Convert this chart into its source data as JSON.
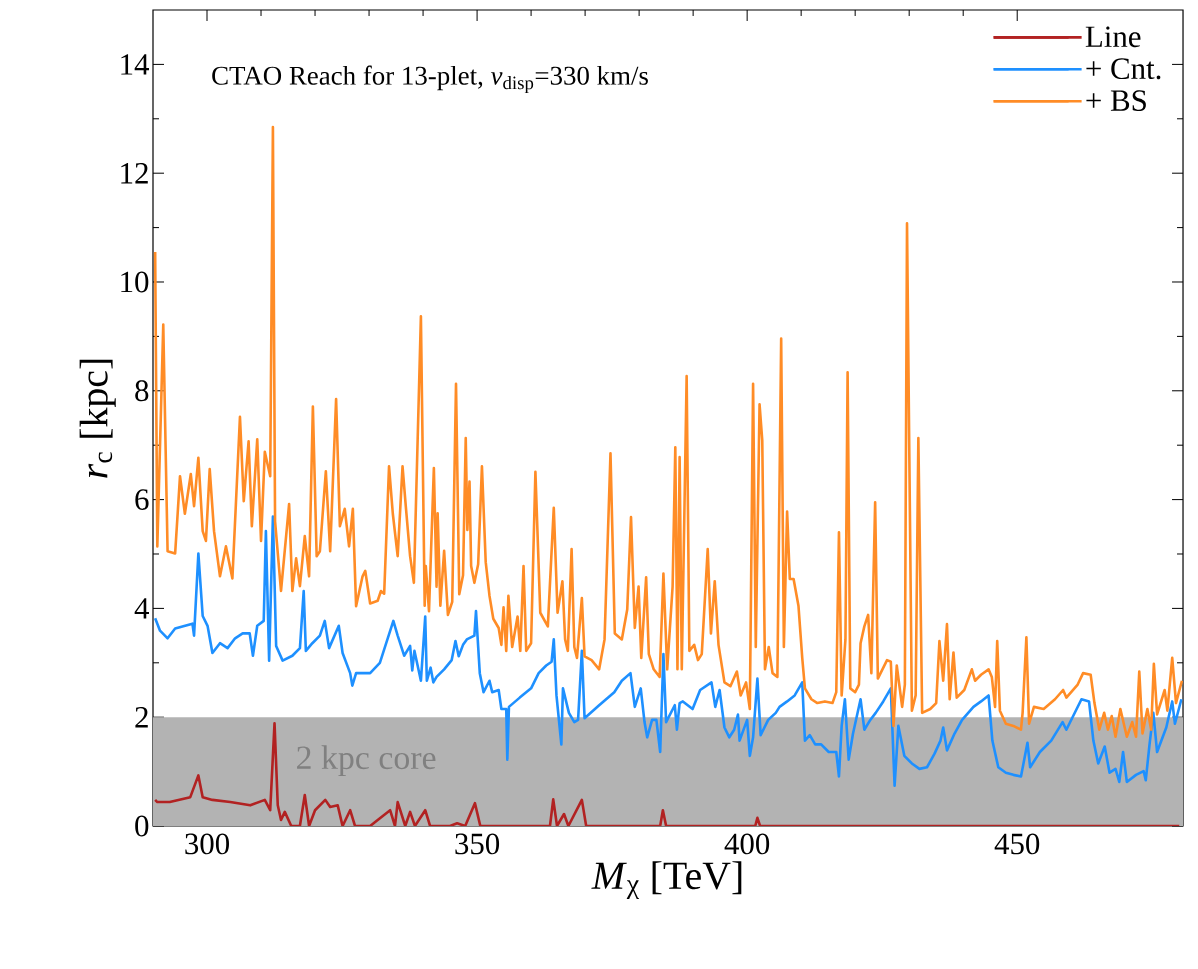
{
  "chart_data": {
    "type": "line",
    "title": "CTAO Reach for 13-plet, *v*$_{disp}$=330 km/s",
    "xlabel": "*M*$_{χ}$ [TeV]",
    "ylabel": "*r*$_{c}$ [kpc]",
    "xlim": [
      290,
      480.7
    ],
    "ylim": [
      0,
      15
    ],
    "xticks": [
      300,
      350,
      400,
      450
    ],
    "yticks": [
      0,
      2,
      4,
      6,
      8,
      10,
      12,
      14
    ],
    "legend": "top right",
    "bands": [
      {
        "axis": "y",
        "from": 0,
        "to": 2,
        "label": "2 kpc core",
        "color": "#b3b3b3"
      }
    ],
    "series": [
      {
        "name": "Line",
        "color": "#b22222",
        "x": [
          290.4,
          290.8,
          293.1,
          296.9,
          298.4,
          299.2,
          301.0,
          304.3,
          308.0,
          310.7,
          311.7,
          312.5,
          313.1,
          313.7,
          314.4,
          315.6,
          317.2,
          318.1,
          318.9,
          320.0,
          321.9,
          322.8,
          324.2,
          325.1,
          326.5,
          327.4,
          330.2,
          331.6,
          333.9,
          334.8,
          335.3,
          336.7,
          337.6,
          338.5,
          340.4,
          341.3,
          345.0,
          346.3,
          347.8,
          349.6,
          350.6,
          363.5,
          364.1,
          364.8,
          366.1,
          366.9,
          369.4,
          370.2,
          383.9,
          384.4,
          385.0,
          401.5,
          401.9,
          402.4,
          480.0
        ],
        "values": [
          0.48,
          0.44,
          0.44,
          0.53,
          0.93,
          0.53,
          0.48,
          0.44,
          0.38,
          0.48,
          0.29,
          1.89,
          0.38,
          0.11,
          0.26,
          0,
          0,
          0.57,
          0,
          0.29,
          0.48,
          0.35,
          0.38,
          0,
          0.29,
          0,
          0,
          0.11,
          0.29,
          0,
          0.44,
          0,
          0.26,
          0,
          0.29,
          0,
          0,
          0.05,
          0,
          0.42,
          0,
          0,
          0.49,
          0,
          0.22,
          0,
          0.48,
          0,
          0,
          0.29,
          0,
          0,
          0.15,
          0,
          0
        ]
      },
      {
        "name": "+ Cnt.",
        "color": "#1e90ff",
        "x": [
          290.4,
          291.3,
          292.7,
          294.1,
          297.3,
          297.6,
          298.4,
          299.2,
          300.1,
          301.0,
          302.4,
          303.8,
          305.2,
          306.6,
          307.9,
          308.5,
          309.3,
          310.5,
          310.9,
          311.5,
          312.2,
          312.8,
          314.0,
          315.8,
          317.2,
          317.9,
          318.3,
          319.5,
          320.9,
          321.8,
          322.6,
          324.4,
          325.1,
          326.5,
          326.9,
          327.6,
          330.2,
          332.0,
          334.5,
          335.3,
          336.5,
          337.6,
          338.0,
          338.4,
          339.6,
          340.4,
          340.7,
          341.4,
          341.9,
          342.5,
          343.9,
          345.3,
          346.0,
          346.6,
          347.4,
          348.1,
          349.5,
          349.8,
          350.5,
          351.2,
          352.3,
          352.8,
          354.0,
          354.5,
          355.4,
          355.6,
          355.9,
          357.9,
          360.0,
          361.4,
          362.8,
          363.8,
          364.2,
          364.7,
          365.6,
          365.9,
          367.0,
          368.0,
          368.7,
          369.4,
          369.9,
          372.6,
          375.4,
          376.8,
          378.4,
          379.2,
          380.3,
          381.0,
          381.5,
          382.4,
          383.2,
          383.9,
          384.5,
          385.0,
          386.6,
          387.0,
          387.5,
          388.1,
          389.9,
          391.3,
          393.4,
          394.1,
          394.9,
          395.8,
          396.7,
          397.6,
          398.3,
          398.6,
          400.0,
          400.5,
          401.1,
          401.9,
          402.5,
          403.9,
          405.3,
          406.0,
          407.4,
          408.8,
          410.2,
          410.7,
          411.6,
          412.6,
          413.7,
          415.1,
          416.5,
          417.0,
          417.5,
          418.1,
          418.8,
          419.6,
          421.0,
          421.7,
          422.8,
          423.8,
          425.2,
          426.6,
          427.3,
          428.0,
          429.1,
          430.5,
          431.9,
          433.3,
          434.7,
          435.8,
          436.3,
          437.0,
          438.4,
          439.8,
          441.9,
          443.3,
          444.7,
          445.4,
          446.5,
          447.9,
          449.3,
          450.7,
          451.9,
          452.4,
          454.2,
          456.3,
          458.4,
          459.1,
          461.9,
          463.3,
          464.1,
          465.0,
          466.2,
          467.1,
          468.2,
          468.9,
          469.6,
          470.3,
          472.0,
          473.4,
          473.8,
          474.5,
          475.2,
          475.9,
          477.6,
          478.7,
          479.2,
          480.4
        ],
        "values": [
          3.82,
          3.59,
          3.45,
          3.63,
          3.72,
          3.5,
          5.01,
          3.86,
          3.68,
          3.18,
          3.36,
          3.27,
          3.45,
          3.54,
          3.54,
          3.13,
          3.68,
          3.77,
          5.42,
          3.04,
          5.69,
          3.31,
          3.04,
          3.13,
          3.27,
          4.32,
          3.22,
          3.36,
          3.5,
          3.77,
          3.27,
          3.68,
          3.18,
          2.81,
          2.58,
          2.81,
          2.81,
          3.0,
          3.77,
          3.5,
          3.13,
          3.31,
          2.86,
          3.22,
          2.67,
          3.85,
          2.67,
          2.91,
          2.64,
          2.74,
          2.88,
          3.05,
          3.4,
          3.12,
          3.33,
          3.43,
          3.5,
          3.95,
          2.81,
          2.46,
          2.67,
          2.46,
          2.5,
          2.15,
          2.15,
          1.22,
          2.19,
          2.36,
          2.53,
          2.81,
          2.95,
          3.02,
          3.43,
          2.4,
          1.5,
          2.53,
          2.08,
          1.91,
          1.95,
          3.22,
          1.98,
          2.22,
          2.46,
          2.67,
          2.81,
          2.19,
          2.53,
          1.91,
          1.63,
          1.95,
          1.95,
          1.36,
          3.16,
          1.91,
          2.22,
          1.77,
          2.26,
          2.29,
          2.15,
          2.5,
          2.64,
          2.19,
          2.5,
          1.81,
          1.63,
          1.77,
          2.05,
          1.57,
          1.95,
          1.29,
          1.63,
          2.71,
          1.67,
          1.95,
          2.08,
          2.19,
          2.29,
          2.4,
          2.64,
          1.57,
          1.67,
          1.5,
          1.5,
          1.36,
          1.36,
          0.91,
          1.84,
          2.33,
          1.22,
          1.7,
          2.33,
          1.77,
          1.95,
          2.08,
          2.29,
          2.53,
          0.74,
          1.84,
          1.29,
          1.15,
          1.05,
          1.08,
          1.33,
          1.57,
          1.81,
          1.39,
          1.7,
          1.95,
          2.19,
          2.29,
          2.4,
          1.57,
          1.08,
          0.98,
          0.94,
          0.91,
          1.53,
          1.08,
          1.36,
          1.57,
          1.91,
          1.77,
          2.33,
          2.29,
          1.57,
          1.15,
          1.46,
          0.98,
          1.05,
          0.81,
          1.36,
          0.81,
          0.94,
          1.01,
          0.84,
          1.5,
          2.08,
          1.36,
          1.81,
          2.29,
          1.88,
          2.33
        ]
      },
      {
        "name": "+ BS",
        "color": "#ff8c26",
        "x": [
          290.4,
          290.8,
          291.9,
          292.7,
          294.1,
          295.0,
          295.9,
          297.0,
          297.6,
          298.4,
          299.2,
          299.8,
          300.5,
          301.3,
          302.4,
          303.5,
          304.7,
          306.1,
          306.8,
          307.7,
          308.3,
          309.3,
          310.0,
          310.7,
          311.7,
          312.2,
          312.6,
          313.7,
          315.2,
          315.8,
          316.5,
          317.2,
          318.1,
          318.9,
          319.6,
          320.3,
          320.9,
          322.0,
          322.8,
          323.9,
          324.6,
          325.5,
          326.3,
          327.0,
          327.6,
          328.8,
          329.3,
          330.2,
          331.6,
          332.2,
          332.8,
          333.7,
          334.4,
          335.3,
          336.2,
          336.8,
          337.6,
          338.3,
          339.6,
          340.3,
          340.5,
          341.1,
          342.0,
          342.5,
          342.7,
          343.2,
          343.9,
          344.6,
          345.4,
          346.1,
          346.7,
          347.4,
          347.9,
          348.2,
          348.6,
          348.9,
          349.5,
          350.2,
          350.9,
          351.6,
          352.3,
          353.0,
          354.0,
          354.5,
          354.9,
          355.4,
          355.8,
          356.5,
          357.5,
          358.0,
          358.6,
          359.1,
          360.0,
          360.8,
          361.7,
          363.1,
          364.2,
          364.9,
          365.8,
          366.3,
          366.8,
          367.5,
          368.0,
          368.5,
          369.4,
          369.9,
          371.2,
          372.6,
          373.6,
          374.7,
          375.5,
          376.8,
          377.8,
          378.5,
          379.2,
          379.9,
          380.4,
          381.3,
          381.8,
          382.7,
          383.8,
          384.5,
          385.2,
          386.2,
          386.7,
          387.1,
          387.5,
          387.9,
          388.8,
          389.3,
          390.2,
          390.9,
          391.6,
          392.7,
          393.3,
          394.0,
          394.7,
          395.8,
          396.9,
          398.1,
          398.8,
          399.8,
          400.5,
          401.1,
          401.6,
          402.3,
          402.8,
          403.3,
          404.0,
          404.7,
          405.6,
          406.3,
          406.8,
          407.4,
          407.9,
          408.6,
          409.5,
          410.2,
          410.7,
          411.9,
          413.0,
          414.4,
          415.8,
          416.5,
          417.0,
          417.5,
          418.2,
          418.6,
          419.1,
          420.0,
          420.7,
          421.0,
          421.7,
          422.4,
          423.0,
          423.7,
          424.2,
          425.9,
          426.6,
          427.1,
          427.7,
          428.7,
          429.2,
          429.6,
          430.5,
          431.2,
          431.7,
          432.4,
          433.9,
          435.0,
          435.6,
          436.3,
          437.0,
          437.5,
          438.2,
          438.8,
          440.2,
          441.6,
          442.2,
          443.3,
          444.7,
          445.3,
          445.9,
          446.3,
          446.8,
          447.9,
          449.3,
          450.7,
          451.0,
          451.7,
          452.2,
          453.1,
          454.9,
          457.0,
          458.5,
          459.1,
          461.2,
          462.2,
          463.6,
          464.3,
          465.2,
          466.1,
          466.8,
          467.5,
          468.2,
          469.1,
          470.3,
          471.3,
          472.0,
          472.6,
          473.2,
          474.1,
          474.8,
          475.3,
          475.9,
          477.3,
          477.8,
          478.7,
          479.4,
          480.5
        ],
        "values": [
          10.55,
          5.14,
          9.22,
          5.05,
          5.01,
          6.43,
          5.74,
          6.47,
          5.88,
          6.77,
          5.42,
          5.24,
          6.56,
          5.42,
          4.59,
          5.14,
          4.55,
          7.52,
          5.97,
          7.07,
          5.51,
          7.11,
          5.24,
          6.88,
          6.43,
          12.85,
          5.6,
          4.32,
          5.92,
          4.32,
          4.92,
          4.41,
          5.33,
          4.59,
          7.71,
          4.96,
          5.05,
          6.52,
          5.05,
          7.85,
          5.51,
          5.83,
          5.14,
          5.83,
          4.04,
          4.59,
          4.69,
          4.09,
          4.14,
          4.32,
          4.27,
          6.61,
          5.74,
          4.96,
          6.61,
          5.88,
          4.96,
          4.47,
          9.37,
          4.05,
          4.78,
          3.95,
          6.58,
          4.4,
          5.75,
          4.05,
          5.06,
          3.88,
          4.12,
          8.13,
          4.26,
          4.61,
          7.13,
          5.44,
          6.33,
          4.78,
          4.47,
          4.81,
          6.61,
          4.85,
          4.23,
          3.81,
          3.64,
          3.33,
          4.02,
          3.22,
          4.23,
          3.29,
          3.85,
          3.22,
          4.78,
          3.22,
          3.36,
          6.51,
          3.92,
          3.67,
          5.85,
          3.92,
          4.5,
          3.43,
          3.22,
          5.09,
          3.29,
          3.09,
          4.19,
          3.12,
          3.05,
          2.88,
          3.43,
          6.85,
          3.54,
          3.43,
          3.98,
          5.68,
          3.64,
          4.4,
          3.09,
          4.57,
          3.16,
          2.88,
          2.74,
          4.64,
          2.88,
          4.4,
          6.96,
          2.88,
          6.78,
          2.88,
          8.27,
          3.22,
          3.33,
          3.05,
          3.16,
          5.09,
          3.54,
          4.5,
          3.33,
          2.64,
          2.57,
          2.84,
          2.4,
          2.64,
          2.15,
          8.13,
          3.29,
          7.75,
          7.09,
          2.88,
          3.29,
          2.81,
          2.74,
          8.96,
          3.29,
          5.78,
          4.54,
          4.54,
          4.05,
          3.09,
          2.53,
          2.33,
          2.26,
          2.29,
          2.26,
          2.46,
          5.4,
          2.4,
          3.43,
          8.34,
          2.53,
          2.46,
          2.6,
          3.36,
          3.67,
          3.88,
          2.81,
          5.95,
          2.71,
          3.05,
          3.02,
          1.84,
          2.95,
          2.19,
          2.6,
          11.08,
          2.12,
          2.4,
          7.13,
          2.08,
          2.15,
          2.26,
          3.4,
          2.67,
          3.71,
          2.33,
          3.19,
          2.36,
          2.5,
          2.88,
          2.67,
          2.78,
          2.88,
          2.74,
          2.19,
          3.4,
          2.12,
          1.88,
          1.84,
          1.77,
          2.08,
          3.47,
          1.88,
          2.19,
          2.15,
          2.33,
          2.5,
          2.36,
          2.6,
          2.81,
          2.78,
          2.26,
          1.77,
          2.08,
          1.77,
          2.02,
          1.64,
          2.15,
          1.64,
          1.91,
          1.64,
          2.84,
          1.7,
          2.15,
          1.77,
          2.98,
          2.05,
          2.5,
          2.12,
          3.09,
          2.26,
          2.67
        ]
      }
    ]
  }
}
